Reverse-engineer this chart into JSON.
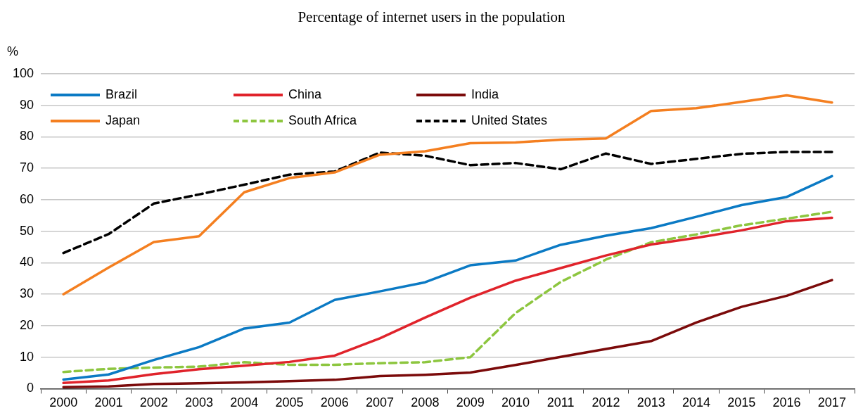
{
  "chart_data": {
    "type": "line",
    "title": "Percentage of internet users in the population",
    "ylabel": "%",
    "categories": [
      "2000",
      "2001",
      "2002",
      "2003",
      "2004",
      "2005",
      "2006",
      "2007",
      "2008",
      "2009",
      "2010",
      "2011",
      "2012",
      "2013",
      "2014",
      "2015",
      "2016",
      "2017"
    ],
    "series": [
      {
        "name": "Brazil",
        "color": "#0b7ac4",
        "values": [
          2.9,
          4.5,
          9.1,
          13.2,
          19.1,
          21.0,
          28.2,
          30.9,
          33.8,
          39.2,
          40.7,
          45.7,
          48.6,
          51.0,
          54.6,
          58.3,
          60.9,
          67.5
        ]
      },
      {
        "name": "China",
        "color": "#e0232b",
        "values": [
          1.8,
          2.6,
          4.6,
          6.2,
          7.3,
          8.5,
          10.5,
          16.0,
          22.6,
          28.9,
          34.3,
          38.3,
          42.3,
          45.8,
          47.9,
          50.3,
          53.2,
          54.3
        ]
      },
      {
        "name": "India",
        "color": "#7b0a0a",
        "values": [
          0.5,
          0.7,
          1.5,
          1.7,
          2.0,
          2.4,
          2.8,
          4.0,
          4.4,
          5.1,
          7.5,
          10.1,
          12.6,
          15.1,
          21.0,
          26.0,
          29.5,
          34.5
        ]
      },
      {
        "name": "Japan",
        "color": "#f47f20",
        "values": [
          30.0,
          38.5,
          46.6,
          48.4,
          62.4,
          66.9,
          68.7,
          74.3,
          75.4,
          78.0,
          78.2,
          79.1,
          79.5,
          88.2,
          89.1,
          91.1,
          93.2,
          90.9
        ]
      },
      {
        "name": "South Africa",
        "color": "#8dc63f",
        "line_style": "dashed",
        "values": [
          5.3,
          6.3,
          6.7,
          7.0,
          8.4,
          7.6,
          7.6,
          8.1,
          8.4,
          10.0,
          24.0,
          33.9,
          41.0,
          46.5,
          49.0,
          51.9,
          54.0,
          56.2
        ]
      },
      {
        "name": "United States",
        "color": "#000000",
        "line_style": "dashed",
        "values": [
          43.1,
          49.1,
          58.8,
          61.7,
          64.8,
          68.0,
          69.0,
          75.0,
          74.0,
          71.0,
          71.7,
          69.7,
          74.7,
          71.4,
          73.0,
          74.6,
          75.2,
          75.2
        ]
      }
    ],
    "ylim": [
      0,
      100
    ],
    "yticks": [
      0,
      10,
      20,
      30,
      40,
      50,
      60,
      70,
      80,
      90,
      100
    ],
    "grid": "y",
    "legend": "top left",
    "marker": "none",
    "line_style": "solid"
  }
}
